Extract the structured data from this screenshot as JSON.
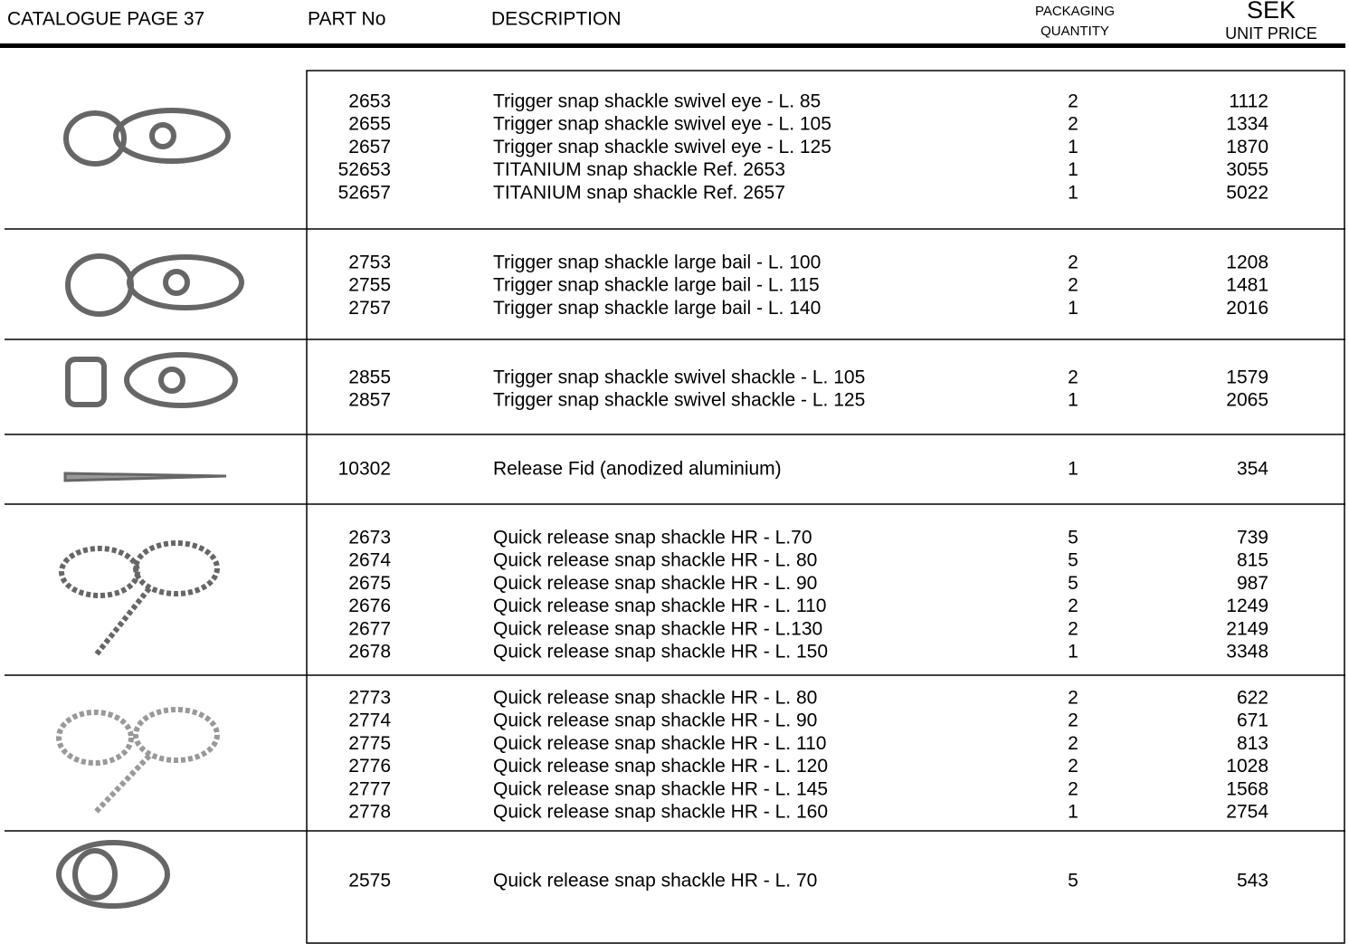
{
  "header": {
    "catalogue_page": "CATALOGUE  PAGE 37",
    "part_no": "PART No",
    "description": "DESCRIPTION",
    "packaging_line1": "PACKAGING",
    "packaging_line2": "QUANTITY",
    "currency": "SEK",
    "unit_price": "UNIT PRICE"
  },
  "groups": [
    {
      "rows": [
        [
          "2653",
          "Trigger snap shackle swivel eye  - L. 85",
          "2",
          "1112"
        ],
        [
          "2655",
          "Trigger snap shackle swivel eye - L. 105",
          "2",
          "1334"
        ],
        [
          "2657",
          "Trigger snap shackle swivel eye - L. 125",
          "1",
          "1870"
        ],
        [
          "52653",
          "TITANIUM snap shackle Ref. 2653",
          "1",
          "3055"
        ],
        [
          "52657",
          "TITANIUM snap shackle Ref. 2657",
          "1",
          "5022"
        ]
      ]
    },
    {
      "rows": [
        [
          "2753",
          "Trigger snap shackle large bail - L. 100",
          "2",
          "1208"
        ],
        [
          "2755",
          "Trigger snap shackle large bail - L. 115",
          "2",
          "1481"
        ],
        [
          "2757",
          "Trigger snap shackle large bail - L. 140",
          "1",
          "2016"
        ]
      ]
    },
    {
      "rows": [
        [
          "2855",
          "Trigger snap shackle swivel shackle - L. 105",
          "2",
          "1579"
        ],
        [
          "2857",
          "Trigger snap shackle swivel shackle - L. 125",
          "1",
          "2065"
        ]
      ]
    },
    {
      "rows": [
        [
          "10302",
          "Release Fid (anodized aluminium)",
          "1",
          "354"
        ]
      ]
    },
    {
      "rows": [
        [
          "2673",
          "Quick release snap shackle HR - L.70",
          "5",
          "739"
        ],
        [
          "2674",
          "Quick release snap shackle HR - L. 80",
          "5",
          "815"
        ],
        [
          "2675",
          "Quick release snap shackle HR - L. 90",
          "5",
          "987"
        ],
        [
          "2676",
          "Quick release snap shackle HR - L. 110",
          "2",
          "1249"
        ],
        [
          "2677",
          "Quick release snap shackle HR - L.130",
          "2",
          "2149"
        ],
        [
          "2678",
          "Quick release snap shackle HR - L. 150",
          "1",
          "3348"
        ]
      ]
    },
    {
      "rows": [
        [
          "2773",
          "Quick release snap shackle HR - L. 80",
          "2",
          "622"
        ],
        [
          "2774",
          "Quick release snap shackle HR - L. 90",
          "2",
          "671"
        ],
        [
          "2775",
          "Quick release snap shackle HR - L. 110",
          "2",
          "813"
        ],
        [
          "2776",
          "Quick release snap shackle HR - L. 120",
          "2",
          "1028"
        ],
        [
          "2777",
          "Quick release snap shackle HR - L. 145",
          "2",
          "1568"
        ],
        [
          "2778",
          "Quick release snap shackle HR - L. 160",
          "1",
          "2754"
        ]
      ]
    },
    {
      "rows": [
        [
          "2575",
          "Quick release snap shackle HR - L. 70",
          "5",
          "543"
        ]
      ]
    }
  ]
}
